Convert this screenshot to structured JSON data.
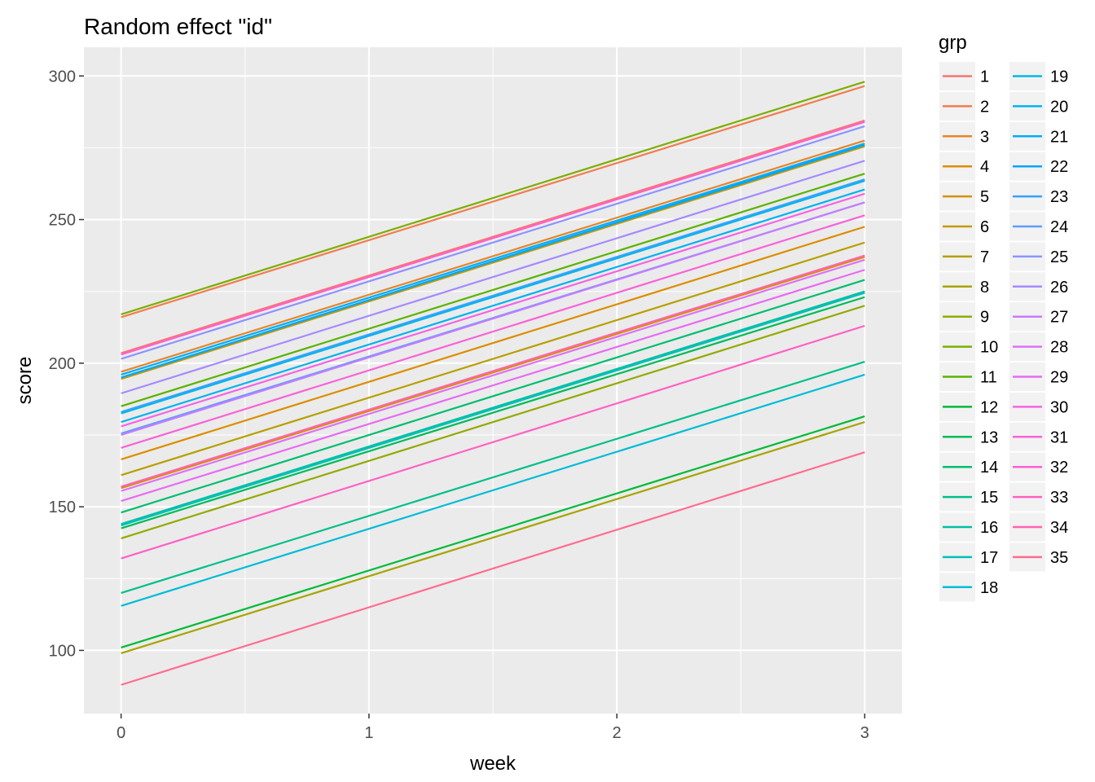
{
  "chart_data": {
    "type": "line",
    "title": "Random effect \"id\"",
    "xlabel": "week",
    "ylabel": "score",
    "xlim": [
      -0.15,
      3.15
    ],
    "ylim": [
      78,
      310
    ],
    "xticks": [
      0,
      1,
      2,
      3
    ],
    "yticks": [
      100,
      150,
      200,
      250,
      300
    ],
    "grid": true,
    "background": "#ebebeb",
    "legend": {
      "title": "grp",
      "position": "right",
      "columns": 2
    },
    "x": [
      0,
      3
    ],
    "series": [
      {
        "name": "1",
        "color": "#F8766D",
        "values": [
          203.5,
          284.5
        ]
      },
      {
        "name": "2",
        "color": "#F17D50",
        "values": [
          216.0,
          296.5
        ]
      },
      {
        "name": "3",
        "color": "#E88526",
        "values": [
          197.0,
          277.5
        ]
      },
      {
        "name": "4",
        "color": "#DD8D00",
        "values": [
          166.5,
          247.5
        ]
      },
      {
        "name": "5",
        "color": "#D39200",
        "values": [
          156.5,
          237.0
        ]
      },
      {
        "name": "6",
        "color": "#C49A00",
        "values": [
          194.5,
          275.5
        ]
      },
      {
        "name": "7",
        "color": "#B79F00",
        "values": [
          161.0,
          242.0
        ]
      },
      {
        "name": "8",
        "color": "#A6A400",
        "values": [
          99.0,
          179.5
        ]
      },
      {
        "name": "9",
        "color": "#93AA00",
        "values": [
          139.0,
          220.0
        ]
      },
      {
        "name": "10",
        "color": "#7CAE00",
        "values": [
          217.0,
          298.0
        ]
      },
      {
        "name": "11",
        "color": "#5BB300",
        "values": [
          185.0,
          266.0
        ]
      },
      {
        "name": "12",
        "color": "#00BA38",
        "values": [
          101.0,
          181.5
        ]
      },
      {
        "name": "13",
        "color": "#00BC56",
        "values": [
          142.5,
          223.0
        ]
      },
      {
        "name": "14",
        "color": "#00BE71",
        "values": [
          148.0,
          229.0
        ]
      },
      {
        "name": "15",
        "color": "#00C08B",
        "values": [
          120.0,
          200.5
        ]
      },
      {
        "name": "16",
        "color": "#00C1A3",
        "values": [
          144.0,
          225.0
        ]
      },
      {
        "name": "17",
        "color": "#00BFB7",
        "values": [
          143.5,
          224.5
        ]
      },
      {
        "name": "18",
        "color": "#00BCD8",
        "values": [
          115.5,
          196.0
        ]
      },
      {
        "name": "19",
        "color": "#00B9E3",
        "values": [
          182.5,
          263.5
        ]
      },
      {
        "name": "20",
        "color": "#00B4EF",
        "values": [
          179.5,
          260.5
        ]
      },
      {
        "name": "21",
        "color": "#00ADFA",
        "values": [
          196.0,
          276.5
        ]
      },
      {
        "name": "22",
        "color": "#00A5FF",
        "values": [
          195.0,
          276.0
        ]
      },
      {
        "name": "23",
        "color": "#35A2FF",
        "values": [
          183.0,
          264.0
        ]
      },
      {
        "name": "24",
        "color": "#619CFF",
        "values": [
          175.5,
          256.0
        ]
      },
      {
        "name": "25",
        "color": "#8C94FF",
        "values": [
          201.5,
          282.5
        ]
      },
      {
        "name": "26",
        "color": "#A58AFF",
        "values": [
          189.5,
          270.5
        ]
      },
      {
        "name": "27",
        "color": "#C77CFF",
        "values": [
          175.0,
          256.0
        ]
      },
      {
        "name": "28",
        "color": "#DC71FA",
        "values": [
          155.5,
          236.0
        ]
      },
      {
        "name": "29",
        "color": "#E76BF3",
        "values": [
          152.0,
          232.5
        ]
      },
      {
        "name": "30",
        "color": "#F564E3",
        "values": [
          178.0,
          259.0
        ]
      },
      {
        "name": "31",
        "color": "#FA62D8",
        "values": [
          170.5,
          251.5
        ]
      },
      {
        "name": "32",
        "color": "#FD61D1",
        "values": [
          203.0,
          284.0
        ]
      },
      {
        "name": "33",
        "color": "#FF61C3",
        "values": [
          132.0,
          213.0
        ]
      },
      {
        "name": "34",
        "color": "#FF64B0",
        "values": [
          157.0,
          237.5
        ]
      },
      {
        "name": "35",
        "color": "#FF6C91",
        "values": [
          88.0,
          169.0
        ]
      }
    ]
  }
}
